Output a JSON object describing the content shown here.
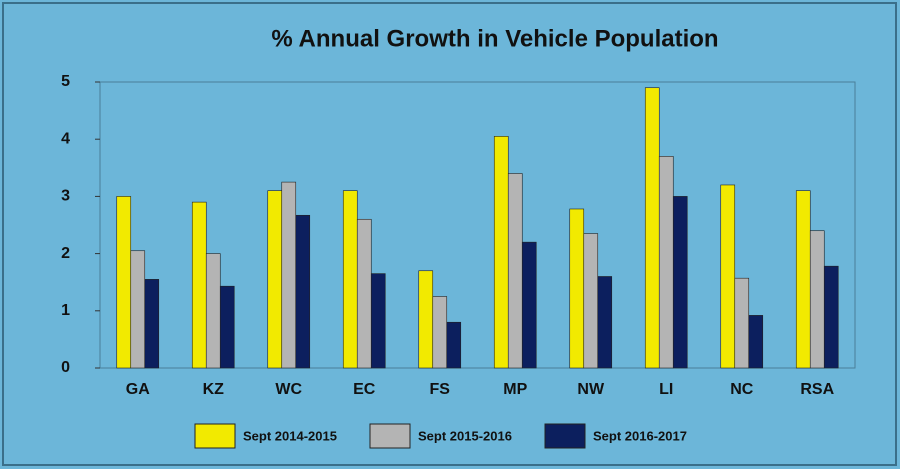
{
  "chart_data": {
    "type": "bar",
    "title": "% Annual Growth in Vehicle Population",
    "categories": [
      "GA",
      "KZ",
      "WC",
      "EC",
      "FS",
      "MP",
      "NW",
      "LI",
      "NC",
      "RSA"
    ],
    "series": [
      {
        "name": "Sept 2014-2015",
        "color": "#f2ea00",
        "values": [
          3.0,
          2.9,
          3.1,
          3.1,
          1.7,
          4.05,
          2.78,
          4.9,
          3.2,
          3.1
        ]
      },
      {
        "name": "Sept 2015-2016",
        "color": "#b4b4b4",
        "values": [
          2.05,
          2.0,
          3.25,
          2.6,
          1.25,
          3.4,
          2.35,
          3.7,
          1.57,
          2.4
        ]
      },
      {
        "name": "Sept 2016-2017",
        "color": "#0c1f5e",
        "values": [
          1.55,
          1.43,
          2.67,
          1.65,
          0.8,
          2.2,
          1.6,
          3.0,
          0.92,
          1.78
        ]
      }
    ],
    "ylim": [
      0,
      5
    ],
    "yticks": [
      0,
      1,
      2,
      3,
      4,
      5
    ],
    "grid": false,
    "legend": "bottom"
  }
}
